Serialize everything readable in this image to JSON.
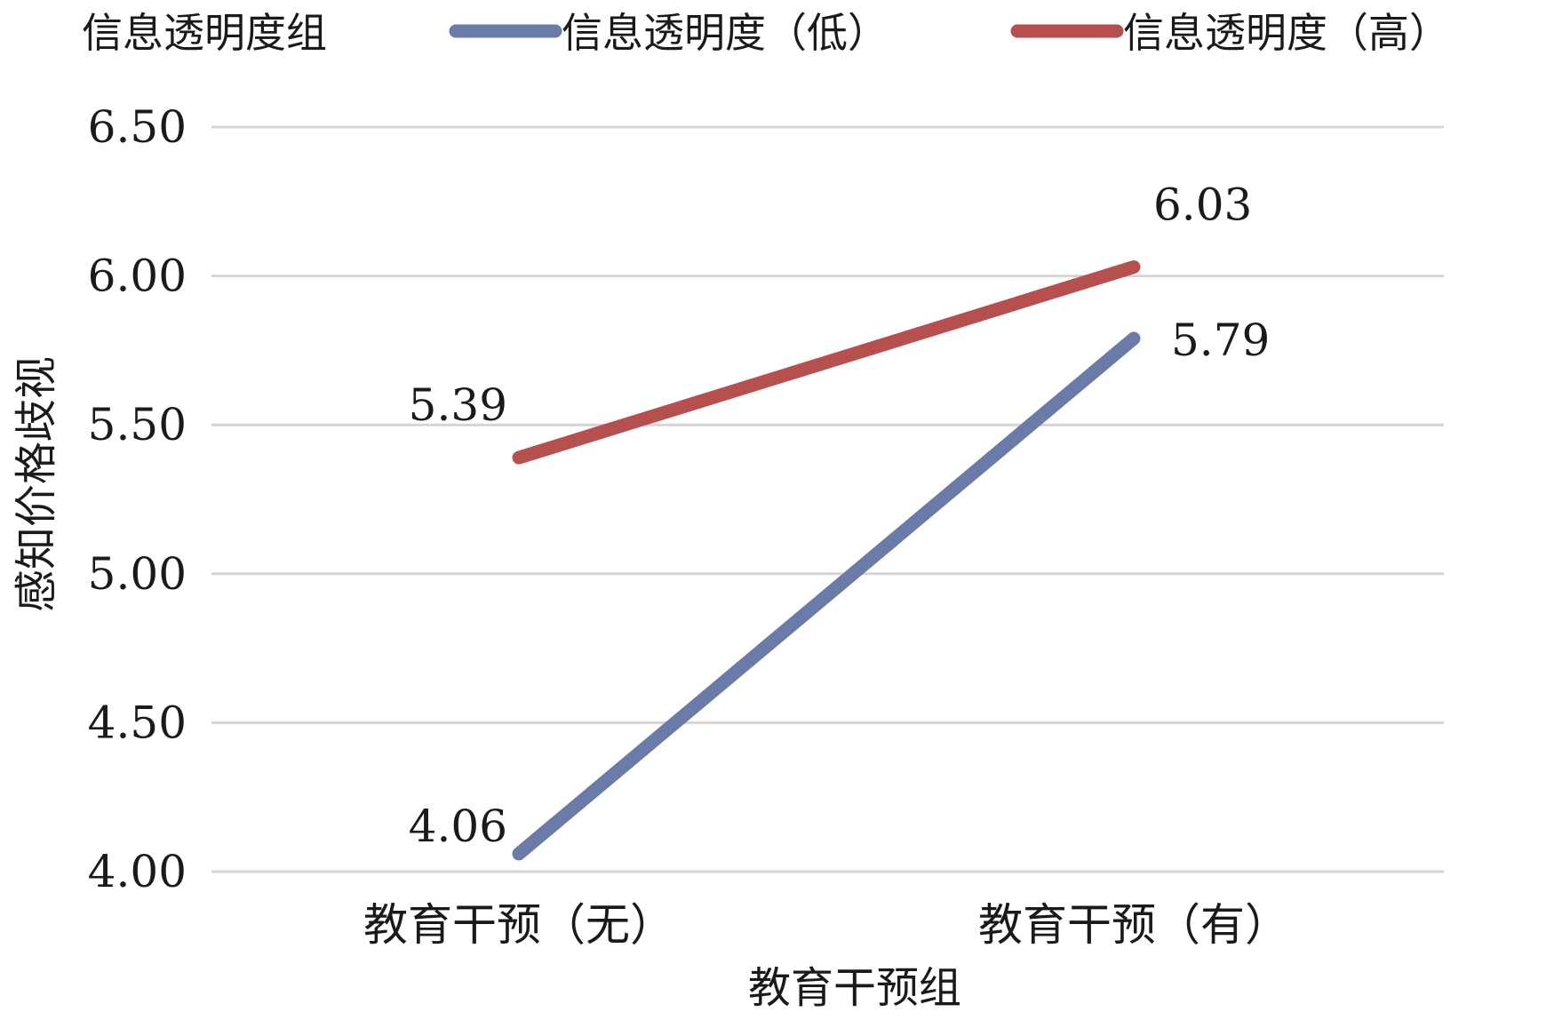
{
  "chart_data": {
    "type": "line",
    "legend_title": "信息透明度组",
    "legend_position": "top",
    "categories": [
      "教育干预（无）",
      "教育干预（有）"
    ],
    "series": [
      {
        "name": "信息透明度（低）",
        "values": [
          4.06,
          5.79
        ],
        "labels": [
          "4.06",
          "5.79"
        ],
        "color": "#6B7BA8"
      },
      {
        "name": "信息透明度（高）",
        "values": [
          5.39,
          6.03
        ],
        "labels": [
          "5.39",
          "6.03"
        ],
        "color": "#B5504E"
      }
    ],
    "xlabel": "教育干预组",
    "ylabel": "感知价格歧视",
    "ylim": [
      4.0,
      6.5
    ],
    "yticks": [
      4.0,
      4.5,
      5.0,
      5.5,
      6.0,
      6.5
    ],
    "ytick_labels": [
      "4.00",
      "4.50",
      "5.00",
      "5.50",
      "6.00",
      "6.50"
    ],
    "grid": true,
    "grid_color": "#D9D4D4"
  }
}
